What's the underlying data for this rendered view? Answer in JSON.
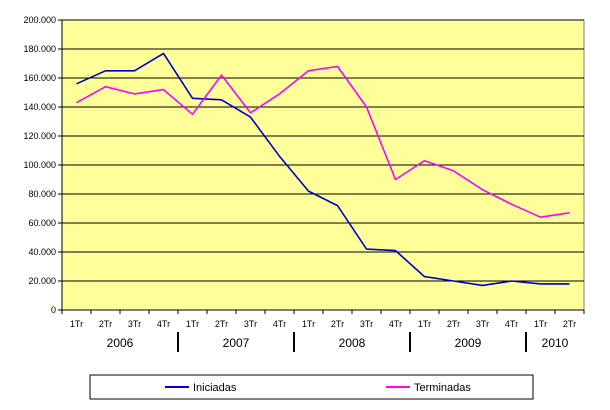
{
  "chart_data": {
    "type": "line",
    "title": "",
    "xlabel": "",
    "ylabel": "",
    "ylim": [
      0,
      200000
    ],
    "yticks": [
      "0",
      "20.000",
      "40.000",
      "60.000",
      "80.000",
      "100.000",
      "120.000",
      "140.000",
      "160.000",
      "180.000",
      "200.000"
    ],
    "categories": [
      "1Tr",
      "2Tr",
      "3Tr",
      "4Tr",
      "1Tr",
      "2Tr",
      "3Tr",
      "4Tr",
      "1Tr",
      "2Tr",
      "3Tr",
      "4Tr",
      "1Tr",
      "2Tr",
      "3Tr",
      "4Tr",
      "1Tr",
      "2Tr"
    ],
    "years": [
      {
        "label": "2006",
        "count": 4
      },
      {
        "label": "2007",
        "count": 4
      },
      {
        "label": "2008",
        "count": 4
      },
      {
        "label": "2009",
        "count": 4
      },
      {
        "label": "2010",
        "count": 2
      }
    ],
    "grid": true,
    "legend_position": "bottom",
    "series": [
      {
        "name": "Iniciadas",
        "color": "#0000cc",
        "values": [
          156000,
          165000,
          165000,
          177000,
          146000,
          145000,
          133000,
          106000,
          82000,
          72000,
          42000,
          41000,
          23000,
          20000,
          17000,
          20000,
          18000,
          18000
        ]
      },
      {
        "name": "Terminadas",
        "color": "#ff00ff",
        "values": [
          143000,
          154000,
          149000,
          152000,
          135000,
          162000,
          136000,
          149000,
          165000,
          168000,
          140000,
          90000,
          103000,
          96000,
          83000,
          73000,
          64000,
          67000
        ]
      }
    ]
  },
  "colors": {
    "plot_bg": "#ffff99",
    "grid": "#000000",
    "axis": "#000000"
  }
}
